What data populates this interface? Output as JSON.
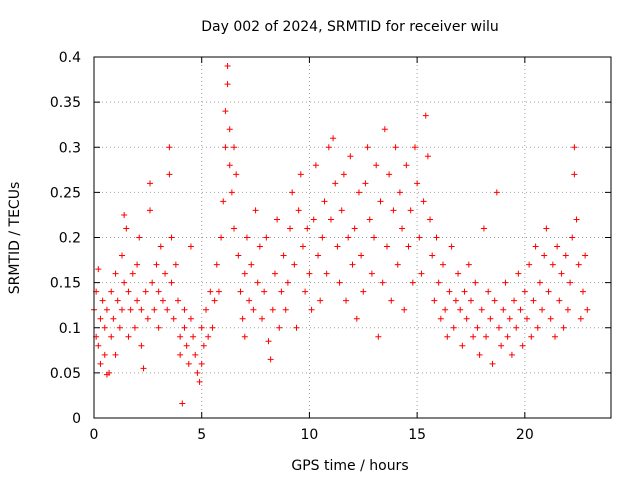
{
  "chart_data": {
    "type": "scatter",
    "title": "Day 002 of 2024, SRMTID for receiver wilu",
    "xlabel": "GPS time / hours",
    "ylabel": "SRMTID / TECUs",
    "xlim": [
      0,
      24
    ],
    "ylim": [
      0,
      0.4
    ],
    "xticks": [
      0,
      5,
      10,
      15,
      20
    ],
    "xtick_labels": [
      "0",
      "5",
      "10",
      "15",
      "20"
    ],
    "yticks": [
      0,
      0.05,
      0.1,
      0.15,
      0.2,
      0.25,
      0.3,
      0.35,
      0.4
    ],
    "ytick_labels": [
      "0",
      "0.05",
      "0.1",
      "0.15",
      "0.2",
      "0.25",
      "0.3",
      "0.35",
      "0.4"
    ],
    "grid": true,
    "marker": "plus",
    "point_color": "#ff0000",
    "series": [
      {
        "name": "SRMTID",
        "points": [
          [
            0.0,
            0.12
          ],
          [
            0.1,
            0.09
          ],
          [
            0.1,
            0.14
          ],
          [
            0.2,
            0.08
          ],
          [
            0.2,
            0.165
          ],
          [
            0.3,
            0.11
          ],
          [
            0.3,
            0.06
          ],
          [
            0.4,
            0.13
          ],
          [
            0.5,
            0.1
          ],
          [
            0.5,
            0.07
          ],
          [
            0.6,
            0.048
          ],
          [
            0.6,
            0.12
          ],
          [
            0.7,
            0.05
          ],
          [
            0.8,
            0.09
          ],
          [
            0.8,
            0.14
          ],
          [
            0.9,
            0.11
          ],
          [
            1.0,
            0.16
          ],
          [
            1.0,
            0.07
          ],
          [
            1.1,
            0.13
          ],
          [
            1.2,
            0.1
          ],
          [
            1.3,
            0.18
          ],
          [
            1.3,
            0.12
          ],
          [
            1.4,
            0.225
          ],
          [
            1.4,
            0.15
          ],
          [
            1.5,
            0.21
          ],
          [
            1.6,
            0.14
          ],
          [
            1.6,
            0.09
          ],
          [
            1.7,
            0.12
          ],
          [
            1.8,
            0.16
          ],
          [
            1.9,
            0.1
          ],
          [
            2.0,
            0.13
          ],
          [
            2.0,
            0.17
          ],
          [
            2.1,
            0.2
          ],
          [
            2.2,
            0.08
          ],
          [
            2.2,
            0.12
          ],
          [
            2.3,
            0.055
          ],
          [
            2.4,
            0.14
          ],
          [
            2.5,
            0.11
          ],
          [
            2.6,
            0.26
          ],
          [
            2.6,
            0.23
          ],
          [
            2.7,
            0.15
          ],
          [
            2.8,
            0.12
          ],
          [
            2.9,
            0.17
          ],
          [
            3.0,
            0.1
          ],
          [
            3.0,
            0.14
          ],
          [
            3.1,
            0.19
          ],
          [
            3.2,
            0.13
          ],
          [
            3.3,
            0.16
          ],
          [
            3.4,
            0.12
          ],
          [
            3.5,
            0.3
          ],
          [
            3.5,
            0.27
          ],
          [
            3.6,
            0.2
          ],
          [
            3.6,
            0.15
          ],
          [
            3.7,
            0.11
          ],
          [
            3.8,
            0.17
          ],
          [
            3.9,
            0.13
          ],
          [
            4.0,
            0.09
          ],
          [
            4.0,
            0.07
          ],
          [
            4.1,
            0.016
          ],
          [
            4.2,
            0.12
          ],
          [
            4.2,
            0.1
          ],
          [
            4.3,
            0.08
          ],
          [
            4.4,
            0.06
          ],
          [
            4.5,
            0.11
          ],
          [
            4.5,
            0.19
          ],
          [
            4.6,
            0.09
          ],
          [
            4.7,
            0.07
          ],
          [
            4.8,
            0.05
          ],
          [
            4.9,
            0.04
          ],
          [
            5.0,
            0.06
          ],
          [
            5.0,
            0.1
          ],
          [
            5.1,
            0.08
          ],
          [
            5.2,
            0.12
          ],
          [
            5.3,
            0.09
          ],
          [
            5.4,
            0.14
          ],
          [
            5.5,
            0.1
          ],
          [
            5.6,
            0.13
          ],
          [
            5.7,
            0.17
          ],
          [
            5.8,
            0.14
          ],
          [
            5.9,
            0.2
          ],
          [
            6.0,
            0.24
          ],
          [
            6.1,
            0.3
          ],
          [
            6.1,
            0.34
          ],
          [
            6.2,
            0.39
          ],
          [
            6.2,
            0.37
          ],
          [
            6.3,
            0.32
          ],
          [
            6.3,
            0.28
          ],
          [
            6.4,
            0.25
          ],
          [
            6.5,
            0.3
          ],
          [
            6.5,
            0.21
          ],
          [
            6.6,
            0.27
          ],
          [
            6.7,
            0.18
          ],
          [
            6.8,
            0.14
          ],
          [
            6.9,
            0.11
          ],
          [
            7.0,
            0.09
          ],
          [
            7.0,
            0.16
          ],
          [
            7.1,
            0.2
          ],
          [
            7.2,
            0.13
          ],
          [
            7.3,
            0.17
          ],
          [
            7.4,
            0.12
          ],
          [
            7.5,
            0.23
          ],
          [
            7.6,
            0.15
          ],
          [
            7.7,
            0.19
          ],
          [
            7.8,
            0.11
          ],
          [
            7.9,
            0.14
          ],
          [
            8.0,
            0.2
          ],
          [
            8.1,
            0.085
          ],
          [
            8.2,
            0.065
          ],
          [
            8.3,
            0.12
          ],
          [
            8.4,
            0.16
          ],
          [
            8.5,
            0.22
          ],
          [
            8.6,
            0.1
          ],
          [
            8.7,
            0.14
          ],
          [
            8.8,
            0.18
          ],
          [
            8.9,
            0.12
          ],
          [
            9.0,
            0.15
          ],
          [
            9.1,
            0.21
          ],
          [
            9.2,
            0.25
          ],
          [
            9.3,
            0.17
          ],
          [
            9.4,
            0.1
          ],
          [
            9.5,
            0.23
          ],
          [
            9.6,
            0.27
          ],
          [
            9.7,
            0.19
          ],
          [
            9.8,
            0.14
          ],
          [
            9.9,
            0.21
          ],
          [
            10.0,
            0.16
          ],
          [
            10.1,
            0.12
          ],
          [
            10.2,
            0.22
          ],
          [
            10.3,
            0.28
          ],
          [
            10.4,
            0.18
          ],
          [
            10.5,
            0.13
          ],
          [
            10.6,
            0.2
          ],
          [
            10.7,
            0.24
          ],
          [
            10.8,
            0.16
          ],
          [
            10.9,
            0.3
          ],
          [
            11.0,
            0.22
          ],
          [
            11.1,
            0.31
          ],
          [
            11.2,
            0.26
          ],
          [
            11.3,
            0.19
          ],
          [
            11.4,
            0.15
          ],
          [
            11.5,
            0.23
          ],
          [
            11.6,
            0.27
          ],
          [
            11.7,
            0.13
          ],
          [
            11.8,
            0.2
          ],
          [
            11.9,
            0.29
          ],
          [
            12.0,
            0.17
          ],
          [
            12.1,
            0.21
          ],
          [
            12.2,
            0.11
          ],
          [
            12.3,
            0.25
          ],
          [
            12.4,
            0.18
          ],
          [
            12.5,
            0.14
          ],
          [
            12.6,
            0.26
          ],
          [
            12.7,
            0.3
          ],
          [
            12.8,
            0.22
          ],
          [
            12.9,
            0.16
          ],
          [
            13.0,
            0.2
          ],
          [
            13.1,
            0.28
          ],
          [
            13.2,
            0.09
          ],
          [
            13.3,
            0.24
          ],
          [
            13.4,
            0.15
          ],
          [
            13.5,
            0.32
          ],
          [
            13.6,
            0.19
          ],
          [
            13.7,
            0.27
          ],
          [
            13.8,
            0.13
          ],
          [
            13.9,
            0.23
          ],
          [
            14.0,
            0.3
          ],
          [
            14.1,
            0.17
          ],
          [
            14.2,
            0.25
          ],
          [
            14.3,
            0.21
          ],
          [
            14.4,
            0.12
          ],
          [
            14.5,
            0.28
          ],
          [
            14.6,
            0.19
          ],
          [
            14.7,
            0.23
          ],
          [
            14.8,
            0.15
          ],
          [
            14.9,
            0.3
          ],
          [
            15.0,
            0.26
          ],
          [
            15.1,
            0.2
          ],
          [
            15.2,
            0.16
          ],
          [
            15.3,
            0.24
          ],
          [
            15.4,
            0.335
          ],
          [
            15.5,
            0.29
          ],
          [
            15.6,
            0.22
          ],
          [
            15.7,
            0.18
          ],
          [
            15.8,
            0.13
          ],
          [
            15.9,
            0.2
          ],
          [
            16.0,
            0.15
          ],
          [
            16.1,
            0.11
          ],
          [
            16.2,
            0.17
          ],
          [
            16.3,
            0.12
          ],
          [
            16.4,
            0.09
          ],
          [
            16.5,
            0.14
          ],
          [
            16.6,
            0.19
          ],
          [
            16.7,
            0.1
          ],
          [
            16.8,
            0.13
          ],
          [
            16.9,
            0.16
          ],
          [
            17.0,
            0.12
          ],
          [
            17.1,
            0.08
          ],
          [
            17.2,
            0.14
          ],
          [
            17.3,
            0.11
          ],
          [
            17.4,
            0.17
          ],
          [
            17.5,
            0.13
          ],
          [
            17.6,
            0.09
          ],
          [
            17.7,
            0.15
          ],
          [
            17.8,
            0.1
          ],
          [
            17.9,
            0.07
          ],
          [
            18.0,
            0.12
          ],
          [
            18.1,
            0.21
          ],
          [
            18.2,
            0.09
          ],
          [
            18.3,
            0.14
          ],
          [
            18.4,
            0.11
          ],
          [
            18.5,
            0.06
          ],
          [
            18.6,
            0.13
          ],
          [
            18.7,
            0.25
          ],
          [
            18.8,
            0.1
          ],
          [
            18.9,
            0.08
          ],
          [
            19.0,
            0.12
          ],
          [
            19.1,
            0.15
          ],
          [
            19.2,
            0.09
          ],
          [
            19.3,
            0.11
          ],
          [
            19.4,
            0.07
          ],
          [
            19.5,
            0.13
          ],
          [
            19.6,
            0.1
          ],
          [
            19.7,
            0.16
          ],
          [
            19.8,
            0.12
          ],
          [
            19.9,
            0.08
          ],
          [
            20.0,
            0.14
          ],
          [
            20.1,
            0.11
          ],
          [
            20.2,
            0.17
          ],
          [
            20.3,
            0.09
          ],
          [
            20.4,
            0.13
          ],
          [
            20.5,
            0.19
          ],
          [
            20.6,
            0.1
          ],
          [
            20.7,
            0.15
          ],
          [
            20.8,
            0.12
          ],
          [
            20.9,
            0.18
          ],
          [
            21.0,
            0.21
          ],
          [
            21.1,
            0.14
          ],
          [
            21.2,
            0.11
          ],
          [
            21.3,
            0.17
          ],
          [
            21.4,
            0.09
          ],
          [
            21.5,
            0.19
          ],
          [
            21.6,
            0.13
          ],
          [
            21.7,
            0.16
          ],
          [
            21.8,
            0.1
          ],
          [
            21.9,
            0.18
          ],
          [
            22.0,
            0.12
          ],
          [
            22.1,
            0.15
          ],
          [
            22.2,
            0.2
          ],
          [
            22.3,
            0.3
          ],
          [
            22.3,
            0.27
          ],
          [
            22.4,
            0.22
          ],
          [
            22.5,
            0.17
          ],
          [
            22.6,
            0.11
          ],
          [
            22.7,
            0.14
          ],
          [
            22.8,
            0.18
          ],
          [
            22.9,
            0.12
          ]
        ]
      }
    ]
  }
}
